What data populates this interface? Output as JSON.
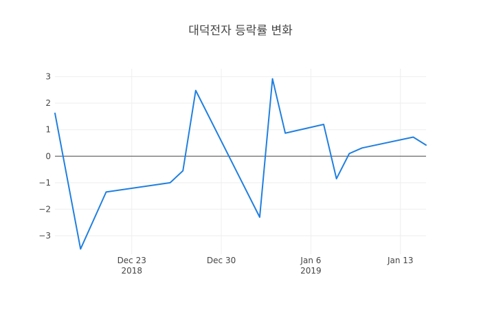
{
  "chart_data": {
    "type": "line",
    "title": "대덕전자 등락률 변화",
    "xlabel": "",
    "ylabel": "",
    "x_axis": {
      "type": "date",
      "ticks": [
        {
          "value": "2018-12-23",
          "label": "Dec 23",
          "sublabel": "2018"
        },
        {
          "value": "2018-12-30",
          "label": "Dec 30",
          "sublabel": ""
        },
        {
          "value": "2019-01-06",
          "label": "Jan 6",
          "sublabel": "2019"
        },
        {
          "value": "2019-01-13",
          "label": "Jan 13",
          "sublabel": ""
        }
      ],
      "range": [
        "2018-12-17",
        "2019-01-15"
      ]
    },
    "y_axis": {
      "range": [
        -3.7,
        3.3
      ],
      "ticks": [
        {
          "value": 3,
          "label": "3"
        },
        {
          "value": 2,
          "label": "2"
        },
        {
          "value": 1,
          "label": "1"
        },
        {
          "value": 0,
          "label": "0"
        },
        {
          "value": -1,
          "label": "−1"
        },
        {
          "value": -2,
          "label": "−2"
        },
        {
          "value": -3,
          "label": "−3"
        }
      ],
      "zeroline": true
    },
    "grid": true,
    "series": [
      {
        "color": "#1f7fe0",
        "x": [
          "2018-12-17",
          "2018-12-19",
          "2018-12-21",
          "2018-12-26",
          "2018-12-27",
          "2018-12-28",
          "2019-01-02",
          "2019-01-03",
          "2019-01-04",
          "2019-01-07",
          "2019-01-08",
          "2019-01-09",
          "2019-01-10",
          "2019-01-14",
          "2019-01-15"
        ],
        "values": [
          1.62,
          -3.5,
          -1.35,
          -1.0,
          -0.55,
          2.48,
          -2.3,
          2.92,
          0.87,
          1.2,
          -0.85,
          0.1,
          0.31,
          0.72,
          0.42
        ]
      }
    ]
  }
}
